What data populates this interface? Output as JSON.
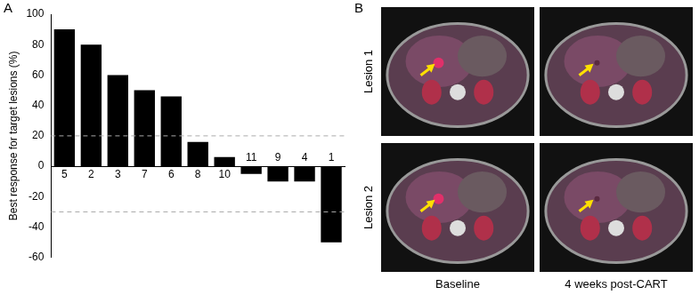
{
  "chart_data": {
    "type": "bar",
    "panel_label": "A",
    "ylabel": "Best response for target lesions (%)",
    "categories": [
      "5",
      "2",
      "3",
      "7",
      "6",
      "8",
      "10",
      "11",
      "9",
      "4",
      "1"
    ],
    "values": [
      90,
      80,
      60,
      50,
      46,
      16,
      6,
      -5,
      -10,
      -10,
      -50
    ],
    "color": "#000000",
    "ylim": [
      -60,
      100
    ],
    "yticks": [
      -60,
      -40,
      -20,
      0,
      20,
      40,
      60,
      80,
      100
    ],
    "reference_lines": [
      20,
      -30
    ],
    "grid": false
  },
  "images": {
    "panel_label": "B",
    "rows": [
      "Lesion 1",
      "Lesion 2"
    ],
    "columns": [
      "Baseline",
      "4 weeks post-CART"
    ]
  }
}
